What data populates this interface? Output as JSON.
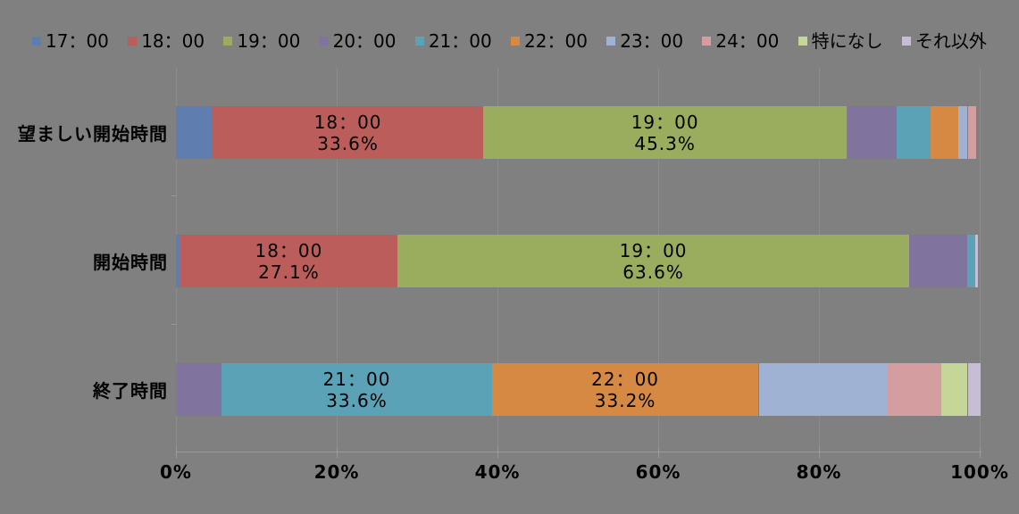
{
  "chart_bg": "#808080",
  "grid_color": "#8b8b8b",
  "axis_color": "#9a9a9a",
  "text_color": "#000000",
  "chart_data": {
    "type": "bar",
    "orientation": "horizontal",
    "stacked": true,
    "units": "percent",
    "title": "",
    "categories": [
      "望ましい開始時間",
      "開始時間",
      "終了時間"
    ],
    "series": [
      {
        "name": "17：00",
        "color": "#607DB0",
        "values": [
          4.6,
          0.5,
          0
        ]
      },
      {
        "name": "18：00",
        "color": "#BB5E5B",
        "values": [
          33.6,
          27.1,
          0
        ]
      },
      {
        "name": "19：00",
        "color": "#9AAC5E",
        "values": [
          45.3,
          63.6,
          0
        ]
      },
      {
        "name": "20：00",
        "color": "#80739E",
        "values": [
          6.2,
          7.2,
          5.7
        ]
      },
      {
        "name": "21：00",
        "color": "#5BA2B6",
        "values": [
          4.2,
          1.0,
          33.6
        ]
      },
      {
        "name": "22：00",
        "color": "#D68942",
        "values": [
          3.4,
          0,
          33.2
        ]
      },
      {
        "name": "23：00",
        "color": "#9FB2D4",
        "values": [
          1.2,
          0,
          16.1
        ]
      },
      {
        "name": "24：00",
        "color": "#D49EA0",
        "values": [
          1.0,
          0,
          6.6
        ]
      },
      {
        "name": "特になし",
        "color": "#C6D699",
        "values": [
          0,
          0,
          3.3
        ]
      },
      {
        "name": "それ以外",
        "color": "#C7BDD5",
        "values": [
          0,
          0.4,
          1.6
        ]
      }
    ],
    "data_labels": [
      {
        "category_index": 0,
        "series": "18：00",
        "lines": [
          "18：00",
          "33.6%"
        ]
      },
      {
        "category_index": 0,
        "series": "19：00",
        "lines": [
          "19：00",
          "45.3%"
        ]
      },
      {
        "category_index": 1,
        "series": "18：00",
        "lines": [
          "18：00",
          "27.1%"
        ]
      },
      {
        "category_index": 1,
        "series": "19：00",
        "lines": [
          "19：00",
          "63.6%"
        ]
      },
      {
        "category_index": 2,
        "series": "21：00",
        "lines": [
          "21：00",
          "33.6%"
        ]
      },
      {
        "category_index": 2,
        "series": "22：00",
        "lines": [
          "22：00",
          "33.2%"
        ]
      }
    ],
    "xlabel": "",
    "ylabel": "",
    "xlim": [
      0,
      100
    ],
    "x_ticks": [
      "0%",
      "20%",
      "40%",
      "60%",
      "80%",
      "100%"
    ],
    "grid": true,
    "legend_position": "top"
  }
}
